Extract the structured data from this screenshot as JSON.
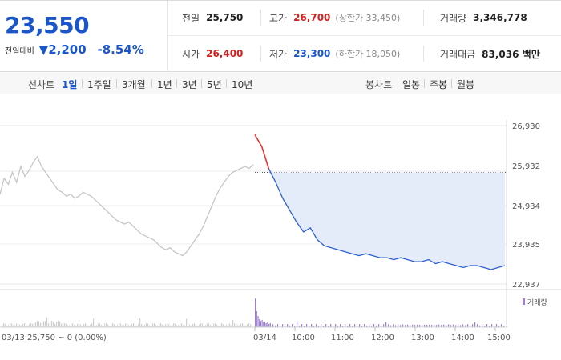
{
  "summary": {
    "current_price": "23,550",
    "diff_label": "전일대비",
    "diff_arrow": "▼",
    "diff_value": "2,200",
    "diff_percent": "-8.54%",
    "prev_close": {
      "label": "전일",
      "value": "25,750"
    },
    "high": {
      "label": "고가",
      "value": "26,700",
      "sub": "(상한가 33,450)"
    },
    "volume": {
      "label": "거래량",
      "value": "3,346,778"
    },
    "open": {
      "label": "시가",
      "value": "26,400"
    },
    "low": {
      "label": "저가",
      "value": "23,300",
      "sub": "(하한가 18,050)"
    },
    "trade_value": {
      "label": "거래대금",
      "value": "83,036 백만"
    }
  },
  "toolbar": {
    "line_label": "선차트",
    "line_periods": [
      "1일",
      "1주일",
      "3개월",
      "1년",
      "3년",
      "5년",
      "10년"
    ],
    "active_period": "1일",
    "candle_label": "봉차트",
    "candle_periods": [
      "일봉",
      "주봉",
      "월봉"
    ]
  },
  "chart_data": {
    "type": "line",
    "y_ticks": [
      "26,930",
      "25,932",
      "24,934",
      "23,935",
      "22,937"
    ],
    "y_tick_values": [
      26930,
      25932,
      24934,
      23935,
      22937
    ],
    "x_ticks": [
      "03/14",
      "10:00",
      "11:00",
      "12:00",
      "13:00",
      "14:00",
      "15:00"
    ],
    "footer_prev": "03/13  25,750 ~ 0 (0.00%)",
    "volume_legend": "거래량",
    "prev_close": 25750,
    "colors": {
      "today": "#2e5fd1",
      "prev_day": "#c6c6c6",
      "fill": "#e4ecf9",
      "up": "#e8312f",
      "volume": "#9c7fd0"
    },
    "series": [
      {
        "values": [
          25200,
          25600,
          25450,
          25750,
          25500,
          25900,
          25650,
          25800,
          26000,
          26150,
          25900,
          25750,
          25600,
          25450,
          25300,
          25250,
          25150,
          25200,
          25100,
          25150,
          25250,
          25200,
          25150,
          25050,
          24950,
          24850,
          24750,
          24650,
          24550,
          24500,
          24450,
          24500,
          24400,
          24300,
          24200,
          24150,
          24100,
          24050,
          23950,
          23850,
          23800,
          23850,
          23750,
          23700,
          23650,
          23750,
          23900,
          24050,
          24200,
          24400,
          24650,
          24900,
          25150,
          25350,
          25500,
          25650,
          25750,
          25800,
          25850,
          25900,
          25850,
          25950
        ]
      },
      {
        "values": [
          26700,
          26400,
          25850,
          25500,
          25100,
          24800,
          24500,
          24250,
          24350,
          24050,
          23900,
          23850,
          23800,
          23750,
          23700,
          23650,
          23700,
          23650,
          23600,
          23600,
          23550,
          23600,
          23550,
          23500,
          23500,
          23550,
          23450,
          23500,
          23450,
          23400,
          23350,
          23400,
          23400,
          23350,
          23300,
          23350,
          23400
        ]
      }
    ]
  }
}
